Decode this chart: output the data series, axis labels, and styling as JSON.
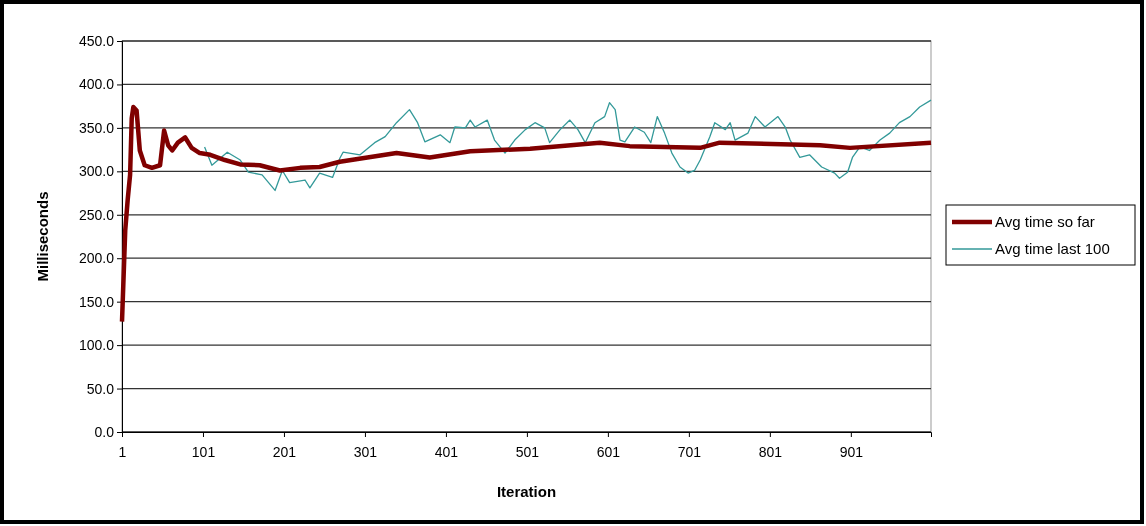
{
  "chart_data": {
    "type": "line",
    "xlabel": "Iteration",
    "ylabel": "Milliseconds",
    "xlim": [
      1,
      1000
    ],
    "xticks": [
      1,
      101,
      201,
      301,
      401,
      501,
      601,
      701,
      801,
      901
    ],
    "ylim": [
      0,
      450
    ],
    "yticks": [
      {
        "value": 0,
        "label": "0.0"
      },
      {
        "value": 50,
        "label": "50.0"
      },
      {
        "value": 100,
        "label": "100.0"
      },
      {
        "value": 150,
        "label": "150.0"
      },
      {
        "value": 200,
        "label": "200.0"
      },
      {
        "value": 250,
        "label": "250.0"
      },
      {
        "value": 300,
        "label": "300.0"
      },
      {
        "value": 350,
        "label": "350.0"
      },
      {
        "value": 400,
        "label": "400.0"
      },
      {
        "value": 450,
        "label": "450.0"
      }
    ],
    "grid": "y",
    "legend": "right",
    "marker": "none",
    "series": [
      {
        "name": "Avg time so far",
        "color": "#800000",
        "x": [
          1,
          5,
          8,
          11,
          13,
          15,
          19,
          23,
          29,
          38,
          48,
          53,
          58,
          63,
          70,
          79,
          87,
          97,
          110,
          128,
          147,
          171,
          196,
          221,
          245,
          270,
          340,
          381,
          431,
          505,
          591,
          628,
          715,
          739,
          863,
          900,
          1000
        ],
        "values": [
          127,
          232,
          267,
          296,
          361,
          374,
          370,
          324,
          307,
          304,
          307,
          347,
          330,
          324,
          333,
          339,
          327,
          321,
          319,
          313,
          308,
          307,
          301,
          304,
          305,
          311,
          321,
          316,
          323,
          326,
          333,
          329,
          327,
          333,
          330,
          327,
          333
        ]
      },
      {
        "name": "Avg time last 100",
        "color": "#339999",
        "x": [
          103,
          112,
          131,
          147,
          157,
          174,
          190,
          199,
          208,
          227,
          233,
          245,
          261,
          270,
          274,
          295,
          313,
          326,
          340,
          356,
          366,
          375,
          394,
          406,
          412,
          425,
          431,
          437,
          452,
          461,
          474,
          486,
          499,
          511,
          523,
          529,
          542,
          554,
          564,
          573,
          585,
          597,
          603,
          610,
          616,
          622,
          634,
          646,
          654,
          662,
          671,
          680,
          690,
          700,
          708,
          715,
          727,
          733,
          746,
          752,
          758,
          774,
          783,
          795,
          811,
          820,
          826,
          838,
          850,
          865,
          881,
          887,
          897,
          903,
          912,
          924,
          937,
          949,
          961,
          974,
          986,
          1000
        ],
        "values": [
          328,
          307,
          322,
          313,
          299,
          296,
          278,
          301,
          287,
          290,
          281,
          298,
          293,
          315,
          322,
          319,
          333,
          340,
          356,
          371,
          356,
          334,
          342,
          333,
          351,
          350,
          359,
          351,
          359,
          336,
          321,
          336,
          348,
          356,
          350,
          333,
          348,
          359,
          348,
          333,
          356,
          363,
          379,
          371,
          336,
          334,
          351,
          345,
          333,
          363,
          344,
          321,
          305,
          298,
          301,
          313,
          340,
          356,
          348,
          356,
          336,
          344,
          363,
          351,
          363,
          351,
          336,
          316,
          319,
          305,
          298,
          292,
          299,
          316,
          328,
          324,
          336,
          344,
          356,
          363,
          374,
          382
        ]
      }
    ]
  }
}
